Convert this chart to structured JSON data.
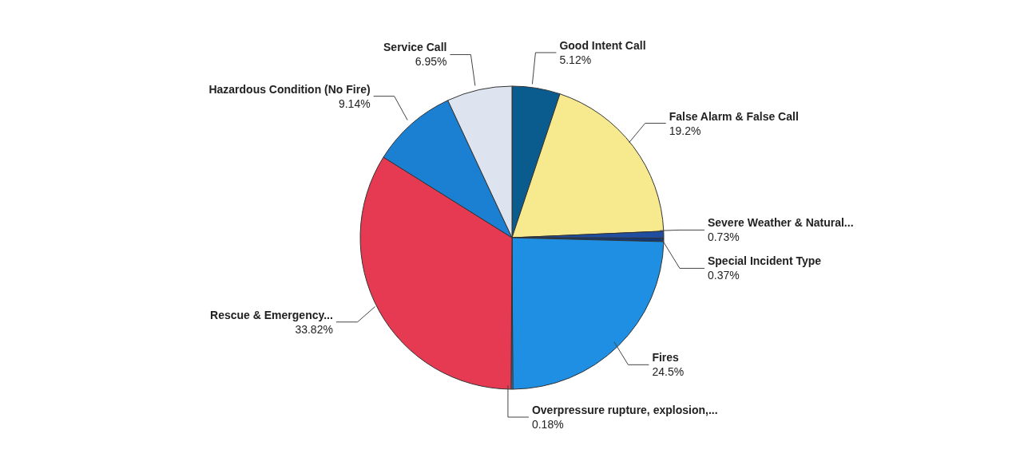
{
  "chart_data": {
    "type": "pie",
    "categories": [
      "Good Intent Call",
      "False Alarm & False Call",
      "Severe Weather & Natural...",
      "Special Incident Type",
      "Fires",
      "Overpressure rupture, explosion,...",
      "Rescue & Emergency...",
      "Hazardous Condition (No Fire)",
      "Service Call"
    ],
    "values": [
      5.12,
      19.2,
      0.73,
      0.37,
      24.5,
      0.18,
      33.82,
      9.14,
      6.95
    ],
    "value_labels": [
      "5.12%",
      "19.2%",
      "0.73%",
      "0.37%",
      "24.5%",
      "0.18%",
      "33.82%",
      "9.14%",
      "6.95%"
    ],
    "colors": [
      "#0b5c8e",
      "#f7ea8e",
      "#1f4ea0",
      "#123a7a",
      "#1e8fe3",
      "#5a7fb0",
      "#e63a52",
      "#1b7fd2",
      "#dde4f0"
    ]
  }
}
